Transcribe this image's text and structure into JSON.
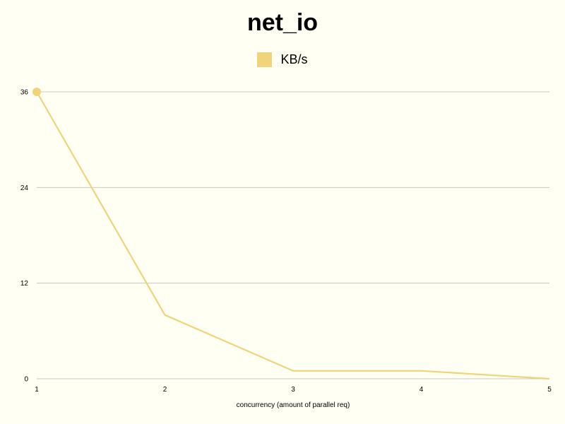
{
  "chart_data": {
    "type": "line",
    "title": "net_io",
    "xlabel": "concurrency (amount of parallel req)",
    "ylabel": "",
    "x": [
      1,
      2,
      3,
      4,
      5
    ],
    "xticks": [
      "1",
      "2",
      "3",
      "4",
      "5"
    ],
    "yticks": [
      "0",
      "12",
      "24",
      "36"
    ],
    "ylim": [
      0,
      36
    ],
    "xlim": [
      1,
      5
    ],
    "grid": true,
    "legend_position": "top-center",
    "series": [
      {
        "name": "KB/s",
        "values": [
          36,
          8,
          1,
          1,
          0
        ],
        "color": "#f0d47a"
      }
    ]
  },
  "colors": {
    "background": "#fffff3",
    "grid": "#c8c8c0",
    "series": "#f0d47a"
  }
}
